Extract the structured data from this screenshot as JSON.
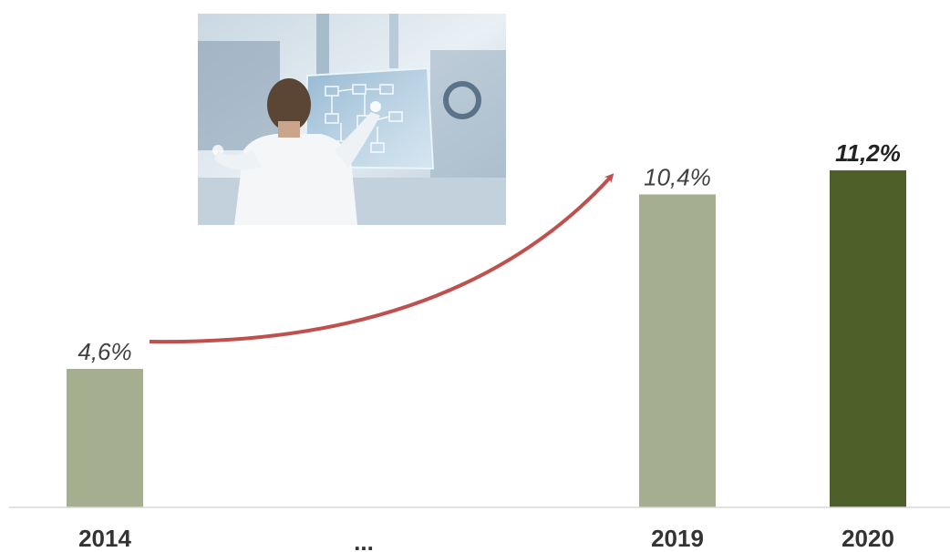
{
  "chart_data": {
    "type": "bar",
    "categories": [
      "2014",
      "...",
      "2019",
      "2020"
    ],
    "values": [
      4.6,
      null,
      10.4,
      11.2
    ],
    "value_labels": [
      "4,6%",
      "",
      "10,4%",
      "11,2%"
    ],
    "highlight_index": 3,
    "title": "",
    "xlabel": "",
    "ylabel": "",
    "ylim": [
      0,
      11.2
    ],
    "grid": false,
    "legend": "none",
    "annotation": "upward trend arrow from 2014 to 2019",
    "colors": {
      "bar": "#a5ae8e",
      "bar_highlight": "#4e5f2a",
      "arrow": "#c0504d",
      "label": "#404040",
      "axis": "#d9d9d9"
    }
  },
  "image": {
    "icon": "industrial-touchscreen-photo-icon"
  }
}
